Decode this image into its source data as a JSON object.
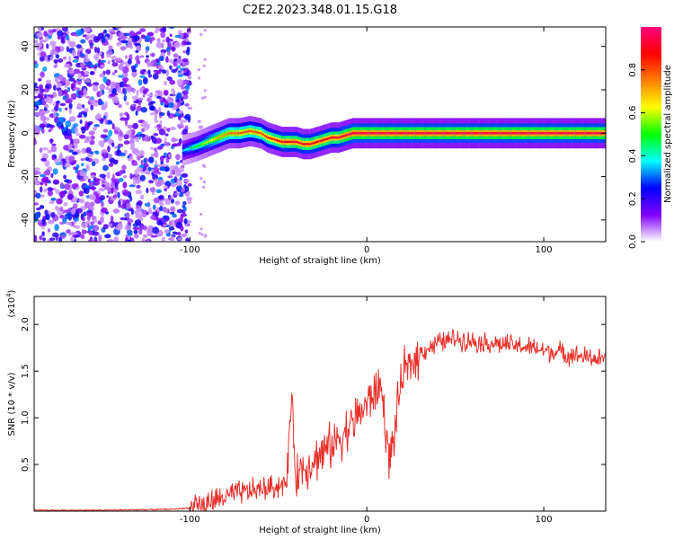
{
  "title": "C2E2.2023.348.01.15.G18",
  "chart_data": [
    {
      "type": "heatmap",
      "xlabel": "Height of straight line (km)",
      "ylabel": "Frequency (Hz)",
      "xlim": [
        -188,
        135
      ],
      "ylim": [
        -50,
        49
      ],
      "xticks": [
        -100,
        0,
        100
      ],
      "yticks": [
        -40,
        -20,
        0,
        20,
        40
      ],
      "colorbar": {
        "label": "Normalized spectral amplitude",
        "range": [
          0,
          1
        ],
        "ticks": [
          0.0,
          0.2,
          0.4,
          0.6,
          0.8
        ],
        "colormap": [
          "#ffffff",
          "#8000ff",
          "#0000ff",
          "#00ffff",
          "#00ff00",
          "#ffff00",
          "#ff8000",
          "#ff0000",
          "#ff0080"
        ]
      },
      "noise_region_x": [
        -188,
        -100
      ],
      "ridge": {
        "x": [
          -104,
          -96,
          -90,
          -84,
          -78,
          -72,
          -66,
          -60,
          -56,
          -52,
          -48,
          -44,
          -40,
          -36,
          -32,
          -28,
          -24,
          -20,
          -16,
          -12,
          -8,
          -4,
          0,
          10,
          30,
          60,
          90,
          135
        ],
        "frequency_hz": [
          -8,
          -6,
          -4,
          -2,
          0,
          0,
          1,
          0,
          -2,
          -3,
          -4,
          -4,
          -4,
          -5,
          -5,
          -4,
          -3,
          -2,
          -2,
          -1,
          0,
          0,
          0,
          0,
          0,
          0,
          0,
          0
        ],
        "amplitude": [
          0.35,
          0.5,
          0.6,
          0.7,
          0.75,
          0.8,
          0.8,
          0.8,
          0.85,
          0.85,
          0.9,
          0.9,
          0.9,
          0.9,
          0.9,
          0.9,
          0.9,
          0.9,
          0.9,
          0.95,
          0.95,
          0.95,
          0.95,
          0.95,
          0.95,
          0.95,
          0.95,
          0.95
        ]
      },
      "grid": false
    },
    {
      "type": "line",
      "xlabel": "Height of straight line (km)",
      "ylabel": "SNR (10 * v/v)",
      "y_scale_label": "(x10",
      "y_scale_exp": "4",
      "xlim": [
        -188,
        135
      ],
      "ylim": [
        0,
        2.3
      ],
      "xticks": [
        -100,
        0,
        100
      ],
      "yticks": [
        0.5,
        1.0,
        1.5,
        2.0
      ],
      "ytick_labels": [
        "0.5",
        "1.0",
        "1.5",
        "2.0"
      ],
      "series": [
        {
          "color": "#e8302a",
          "x": [
            -188,
            -150,
            -110,
            -95,
            -85,
            -75,
            -65,
            -55,
            -45,
            -43,
            -40,
            -30,
            -20,
            -10,
            0,
            8,
            13,
            20,
            30,
            40,
            50,
            60,
            70,
            80,
            90,
            100,
            110,
            120,
            135
          ],
          "y": [
            0.01,
            0.01,
            0.02,
            0.04,
            0.12,
            0.18,
            0.22,
            0.25,
            0.3,
            1.2,
            0.4,
            0.55,
            0.7,
            0.9,
            1.15,
            1.35,
            0.5,
            1.45,
            1.7,
            1.8,
            1.85,
            1.82,
            1.8,
            1.78,
            1.76,
            1.72,
            1.7,
            1.66,
            1.62
          ]
        }
      ],
      "grid": false
    }
  ]
}
